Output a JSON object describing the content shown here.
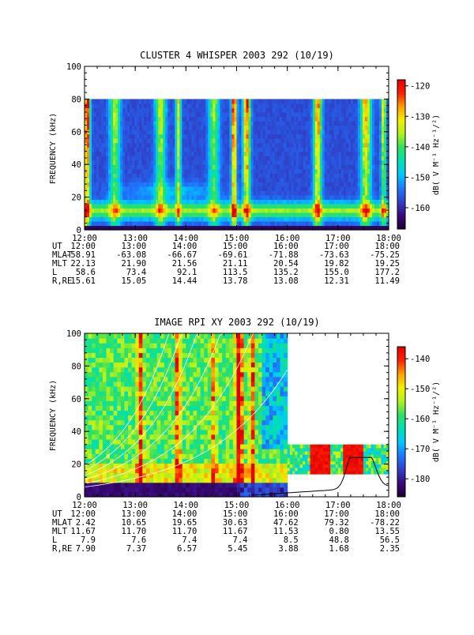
{
  "chart_data": [
    {
      "type": "heatmap",
      "title": "CLUSTER 4 WHISPER 2003 292 (10/19)",
      "ylabel": "FREQUENCY (kHz)",
      "ylim": [
        0,
        100
      ],
      "yticks": [
        "0",
        "20",
        "40",
        "60",
        "80",
        "100"
      ],
      "data_freq_range_khz": [
        0,
        80
      ],
      "xticks": [
        "12:00",
        "13:00",
        "14:00",
        "15:00",
        "16:00",
        "17:00",
        "18:00"
      ],
      "colorbar": {
        "label": "dB( V M⁻¹ Hz⁻¹/²)",
        "range": [
          -167,
          -118
        ],
        "ticks": [
          "-120",
          "-130",
          "-140",
          "-150",
          "-160"
        ]
      },
      "ephemeris": {
        "UT": [
          "12:00",
          "13:00",
          "14:00",
          "15:00",
          "16:00",
          "17:00",
          "18:00"
        ],
        "MLAT": [
          "-58.91",
          "-63.08",
          "-66.67",
          "-69.61",
          "-71.88",
          "-73.63",
          "-75.25"
        ],
        "MLT": [
          "22.13",
          "21.90",
          "21.56",
          "21.11",
          "20.54",
          "19.82",
          "19.25"
        ],
        "L": [
          "58.6",
          "73.4",
          "92.1",
          "113.5",
          "135.2",
          "155.0",
          "177.2"
        ],
        "R,RE": [
          "15.61",
          "15.05",
          "14.44",
          "13.78",
          "13.08",
          "12.31",
          "11.49"
        ]
      }
    },
    {
      "type": "heatmap",
      "title": "IMAGE RPI XY 2003 292 (10/19)",
      "ylabel": "FREQUENCY (kHz)",
      "ylim": [
        0,
        100
      ],
      "yticks": [
        "0",
        "20",
        "40",
        "60",
        "80",
        "100"
      ],
      "xticks": [
        "12:00",
        "13:00",
        "14:00",
        "15:00",
        "16:00",
        "17:00",
        "18:00"
      ],
      "colorbar": {
        "label": "dB( V M⁻¹ Hz⁻¹/²)",
        "range": [
          -186,
          -136
        ],
        "ticks": [
          "-140",
          "-150",
          "-160",
          "-170",
          "-180"
        ]
      },
      "ephemeris": {
        "UT": [
          "12:00",
          "13:00",
          "14:00",
          "15:00",
          "16:00",
          "17:00",
          "18:00"
        ],
        "MLAT": [
          "2.42",
          "10.65",
          "19.65",
          "30.63",
          "47.62",
          "79.32",
          "-78.22"
        ],
        "MLT": [
          "11.67",
          "11.70",
          "11.70",
          "11.67",
          "11.53",
          "0.80",
          "13.55"
        ],
        "L": [
          "7.9",
          "7.6",
          "7.4",
          "7.4",
          "8.5",
          "48.8",
          "56.5"
        ],
        "R,RE": [
          "7.90",
          "7.37",
          "6.57",
          "5.45",
          "3.88",
          "1.68",
          "2.35"
        ]
      }
    }
  ],
  "colors": {
    "colormap": [
      "#1a0033",
      "#3b0a7a",
      "#3040c8",
      "#1e78ff",
      "#00c8ff",
      "#00e0b0",
      "#30e060",
      "#b0f020",
      "#f0f000",
      "#ffa000",
      "#ff2000",
      "#e00000"
    ],
    "curve_white": "#ffffff",
    "curve_black": "#000000"
  }
}
